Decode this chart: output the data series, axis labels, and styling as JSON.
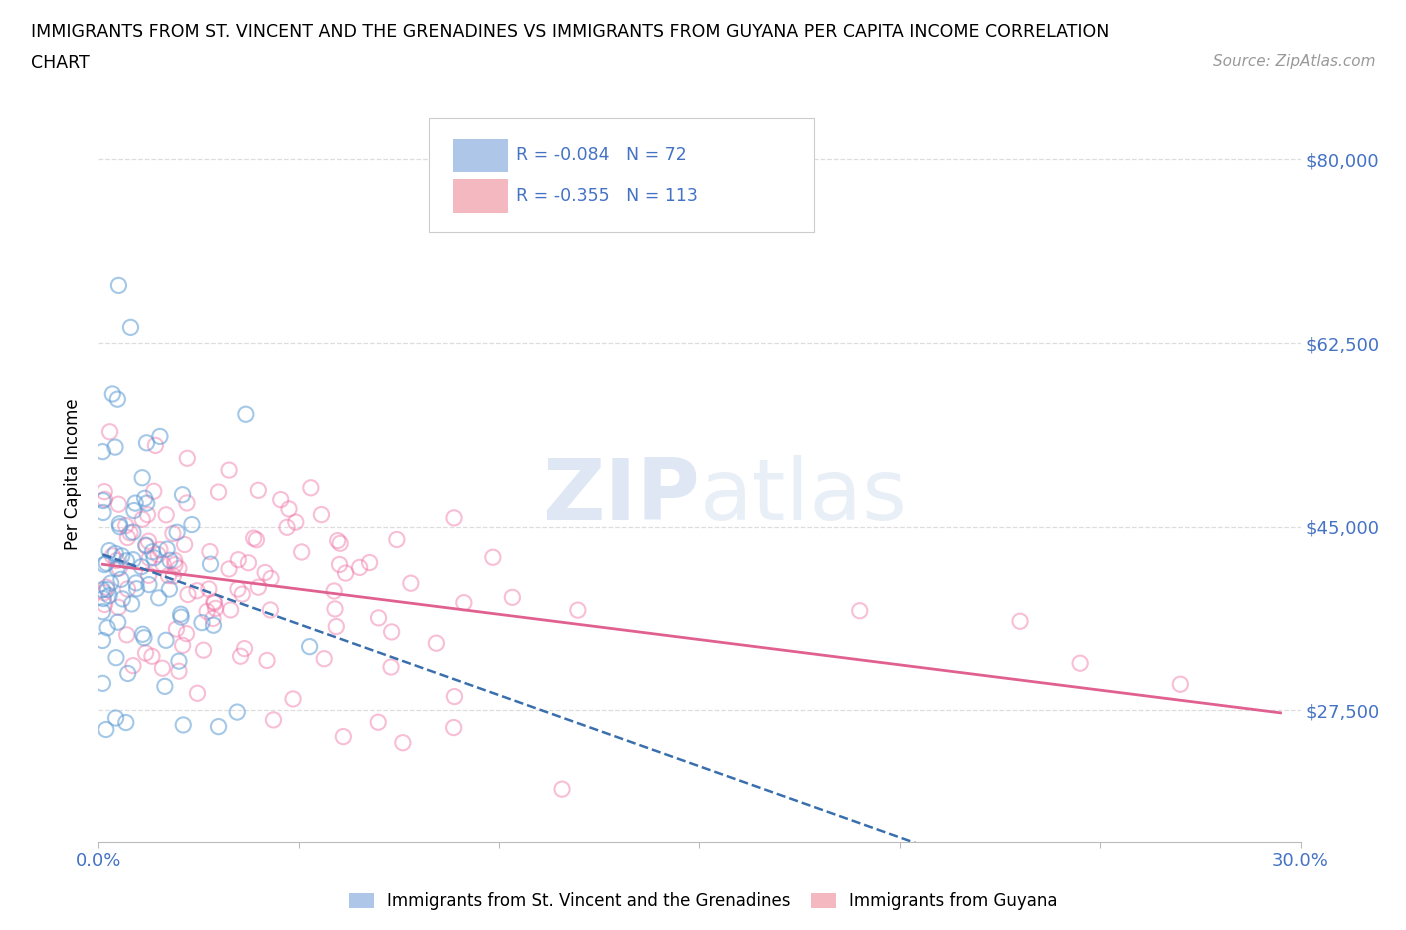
{
  "title_line1": "IMMIGRANTS FROM ST. VINCENT AND THE GRENADINES VS IMMIGRANTS FROM GUYANA PER CAPITA INCOME CORRELATION",
  "title_line2": "CHART",
  "source": "Source: ZipAtlas.com",
  "ylabel": "Per Capita Income",
  "xmin": 0.0,
  "xmax": 0.3,
  "ymin": 15000,
  "ymax": 85000,
  "yticks": [
    27500,
    45000,
    62500,
    80000
  ],
  "ytick_labels": [
    "$27,500",
    "$45,000",
    "$62,500",
    "$80,000"
  ],
  "xticks": [
    0.0,
    0.05,
    0.1,
    0.15,
    0.2,
    0.25,
    0.3
  ],
  "series1_color": "#5b9bd5",
  "series2_color": "#f06fa4",
  "series1_alpha": 0.55,
  "series2_alpha": 0.45,
  "series1_marker_size": 120,
  "series2_marker_size": 120,
  "trendline1_color": "#3a6fad",
  "trendline2_color": "#e06090",
  "trendline1_style": "--",
  "trendline2_style": "-",
  "legend1_color": "#aec6e8",
  "legend2_color": "#f4b8c1",
  "watermark": "ZIPatlas",
  "background_color": "#ffffff",
  "grid_color": "#dddddd",
  "grid_style": "--",
  "r_text_color": "#4472c4",
  "n_text_color": "#4472c4"
}
